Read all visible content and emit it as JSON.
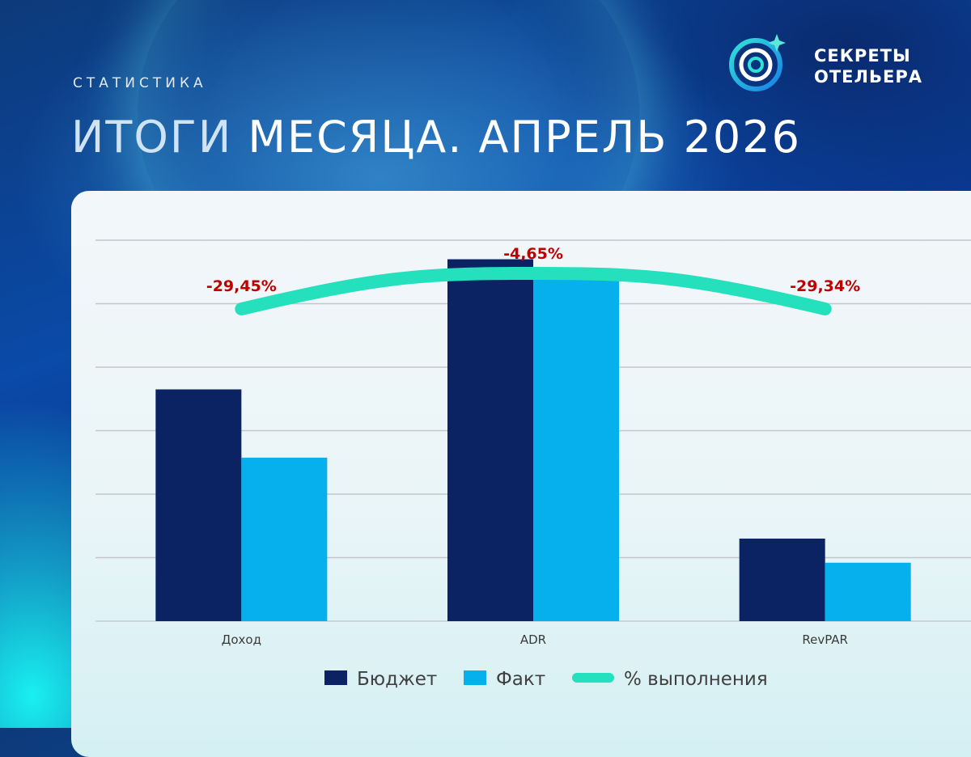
{
  "header": {
    "kicker": "СТАТИСТИКА",
    "title_part1": "ИТОГИ",
    "title_part2": "МЕСЯЦА. АПРЕЛЬ 2026"
  },
  "logo": {
    "line1": "СЕКРЕТЫ",
    "line2": "ОТЕЛЬЕРА",
    "icon": "circle-orbit-sparkle-icon"
  },
  "colors": {
    "budget": "#0b2363",
    "fact": "#05b0ec",
    "completion": "#25e0bd",
    "label": "#c00000"
  },
  "chart_data": {
    "type": "bar",
    "categories": [
      "Доход",
      "ADR",
      "RevPAR"
    ],
    "ylim": [
      0,
      120
    ],
    "grid": true,
    "legend_position": "bottom",
    "series": [
      {
        "name": "Бюджет",
        "values": [
          73.0,
          114.0,
          26.0
        ]
      },
      {
        "name": "Факт",
        "values": [
          51.5,
          108.7,
          18.4
        ]
      }
    ],
    "line_series": {
      "name": "% выполнения",
      "labels": [
        "-29,45%",
        "-4,65%",
        "-29,34%"
      ]
    }
  }
}
